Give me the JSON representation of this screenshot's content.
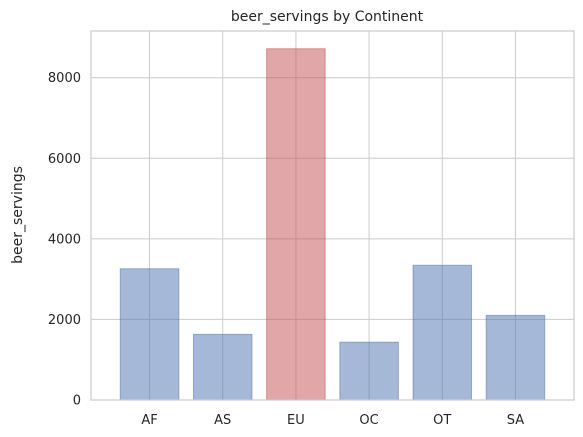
{
  "chart_data": {
    "type": "bar",
    "title": "beer_servings by Continent",
    "xlabel": "",
    "ylabel": "beer_servings",
    "categories": [
      "AF",
      "AS",
      "EU",
      "OC",
      "OT",
      "SA"
    ],
    "values": [
      3258,
      1630,
      8720,
      1435,
      3345,
      2101
    ],
    "highlight_index": 2,
    "ylim": [
      0,
      9160
    ],
    "yticks": [
      0,
      2000,
      4000,
      6000,
      8000
    ],
    "grid": true,
    "colors": {
      "bar": "#4c72b0",
      "highlight": "#c44e52",
      "grid": "#cccccc",
      "frame": "#cccccc"
    }
  }
}
